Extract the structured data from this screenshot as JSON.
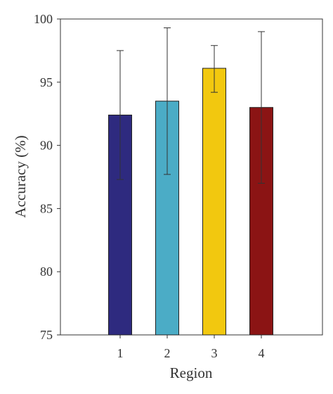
{
  "chart_data": {
    "type": "bar",
    "title": "",
    "xlabel": "Region",
    "ylabel": "Accuracy (%)",
    "categories": [
      "1",
      "2",
      "3",
      "4"
    ],
    "values": [
      92.4,
      93.5,
      96.1,
      93.0
    ],
    "error_low": [
      87.3,
      87.7,
      94.2,
      87.0
    ],
    "error_high": [
      97.5,
      99.3,
      97.9,
      99.0
    ],
    "bar_colors": [
      "#2e2a7f",
      "#4bacc6",
      "#f2c80f",
      "#8b1414"
    ],
    "ylim": [
      75,
      100
    ],
    "yticks": [
      75,
      80,
      85,
      90,
      95,
      100
    ],
    "grid": false,
    "legend": false
  }
}
